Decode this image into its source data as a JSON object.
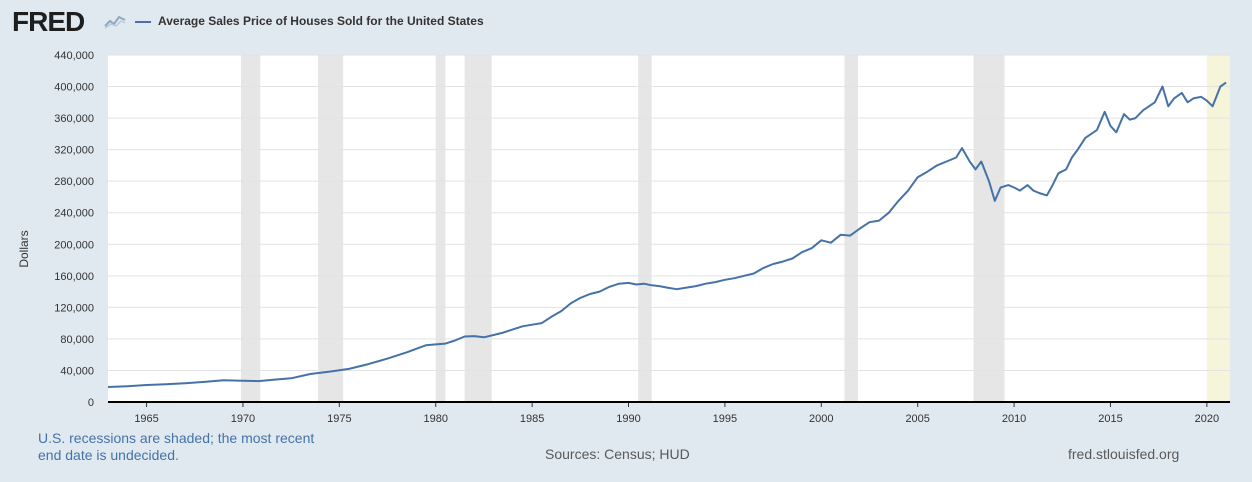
{
  "header": {
    "logo_text": "FRED",
    "legend_label": "Average Sales Price of Houses Sold for the United States",
    "series_color": "#4572a7"
  },
  "footer": {
    "recession_note_line1": "U.S. recessions are shaded; the most recent",
    "recession_note_line2": "end date is undecided.",
    "sources": "Sources: Census; HUD",
    "url": "fred.stlouisfed.org"
  },
  "chart_data": {
    "type": "line",
    "title": "Average Sales Price of Houses Sold for the United States",
    "xlabel": "",
    "ylabel": "Dollars",
    "xlim": [
      1963.0,
      2021.2
    ],
    "ylim": [
      0,
      440000
    ],
    "y_ticks": [
      0,
      40000,
      80000,
      120000,
      160000,
      200000,
      240000,
      280000,
      320000,
      360000,
      400000,
      440000
    ],
    "y_tick_labels": [
      "0",
      "40,000",
      "80,000",
      "120,000",
      "160,000",
      "200,000",
      "240,000",
      "280,000",
      "320,000",
      "360,000",
      "400,000",
      "440,000"
    ],
    "x_ticks": [
      1965,
      1970,
      1975,
      1980,
      1985,
      1990,
      1995,
      2000,
      2005,
      2010,
      2015,
      2020
    ],
    "x_tick_labels": [
      "1965",
      "1970",
      "1975",
      "1980",
      "1985",
      "1990",
      "1995",
      "2000",
      "2005",
      "2010",
      "2015",
      "2020"
    ],
    "grid": true,
    "recessions": [
      {
        "start": 1969.9,
        "end": 1970.9
      },
      {
        "start": 1973.9,
        "end": 1975.2
      },
      {
        "start": 1980.0,
        "end": 1980.5
      },
      {
        "start": 1981.5,
        "end": 1982.9
      },
      {
        "start": 1990.5,
        "end": 1991.2
      },
      {
        "start": 2001.2,
        "end": 2001.9
      },
      {
        "start": 2007.9,
        "end": 2009.5
      }
    ],
    "undecided_recession": {
      "start": 2020.0,
      "end": 2021.2
    },
    "series": [
      {
        "name": "Average Sales Price of Houses Sold for the United States",
        "x": [
          1963.0,
          1964.0,
          1965.0,
          1966.0,
          1967.0,
          1968.0,
          1969.0,
          1970.0,
          1970.8,
          1971.5,
          1972.5,
          1973.5,
          1974.5,
          1975.5,
          1976.5,
          1977.5,
          1978.5,
          1979.5,
          1980.0,
          1980.5,
          1981.0,
          1981.5,
          1982.0,
          1982.5,
          1983.0,
          1983.5,
          1984.0,
          1984.5,
          1985.0,
          1985.5,
          1986.0,
          1986.5,
          1987.0,
          1987.5,
          1988.0,
          1988.5,
          1989.0,
          1989.5,
          1990.0,
          1990.4,
          1990.8,
          1991.2,
          1991.6,
          1992.0,
          1992.5,
          1993.0,
          1993.5,
          1994.0,
          1994.5,
          1995.0,
          1995.5,
          1996.0,
          1996.5,
          1997.0,
          1997.5,
          1998.0,
          1998.5,
          1999.0,
          1999.5,
          2000.0,
          2000.5,
          2001.0,
          2001.5,
          2002.0,
          2002.5,
          2003.0,
          2003.5,
          2004.0,
          2004.5,
          2005.0,
          2005.5,
          2006.0,
          2006.5,
          2007.0,
          2007.3,
          2007.7,
          2008.0,
          2008.3,
          2008.7,
          2009.0,
          2009.3,
          2009.7,
          2010.0,
          2010.3,
          2010.7,
          2011.0,
          2011.3,
          2011.7,
          2012.0,
          2012.3,
          2012.7,
          2013.0,
          2013.3,
          2013.7,
          2014.0,
          2014.3,
          2014.7,
          2015.0,
          2015.3,
          2015.7,
          2016.0,
          2016.3,
          2016.7,
          2017.0,
          2017.3,
          2017.7,
          2018.0,
          2018.3,
          2018.7,
          2019.0,
          2019.3,
          2019.7,
          2020.0,
          2020.3,
          2020.7,
          2021.0
        ],
        "values": [
          19000,
          20000,
          21500,
          22500,
          23800,
          25500,
          27500,
          27000,
          26500,
          28000,
          30000,
          35500,
          38500,
          42000,
          48000,
          55000,
          63000,
          72000,
          73000,
          74000,
          78000,
          83000,
          83500,
          82000,
          85000,
          88000,
          92000,
          96000,
          98000,
          100000,
          108000,
          115000,
          125000,
          132000,
          137000,
          140000,
          146000,
          150000,
          151000,
          149000,
          150000,
          148000,
          147000,
          145000,
          143000,
          145000,
          147000,
          150000,
          152000,
          155000,
          157000,
          160000,
          163000,
          170000,
          175000,
          178000,
          182000,
          190000,
          195000,
          205000,
          202000,
          212000,
          211000,
          220000,
          228000,
          230000,
          240000,
          255000,
          268000,
          285000,
          292000,
          300000,
          305000,
          310000,
          322000,
          305000,
          295000,
          305000,
          280000,
          255000,
          272000,
          275000,
          272000,
          268000,
          275000,
          268000,
          265000,
          262000,
          275000,
          290000,
          295000,
          310000,
          320000,
          335000,
          340000,
          345000,
          368000,
          350000,
          342000,
          365000,
          358000,
          360000,
          370000,
          375000,
          380000,
          400000,
          375000,
          385000,
          392000,
          380000,
          385000,
          387000,
          382000,
          375000,
          400000,
          405000
        ]
      }
    ]
  }
}
